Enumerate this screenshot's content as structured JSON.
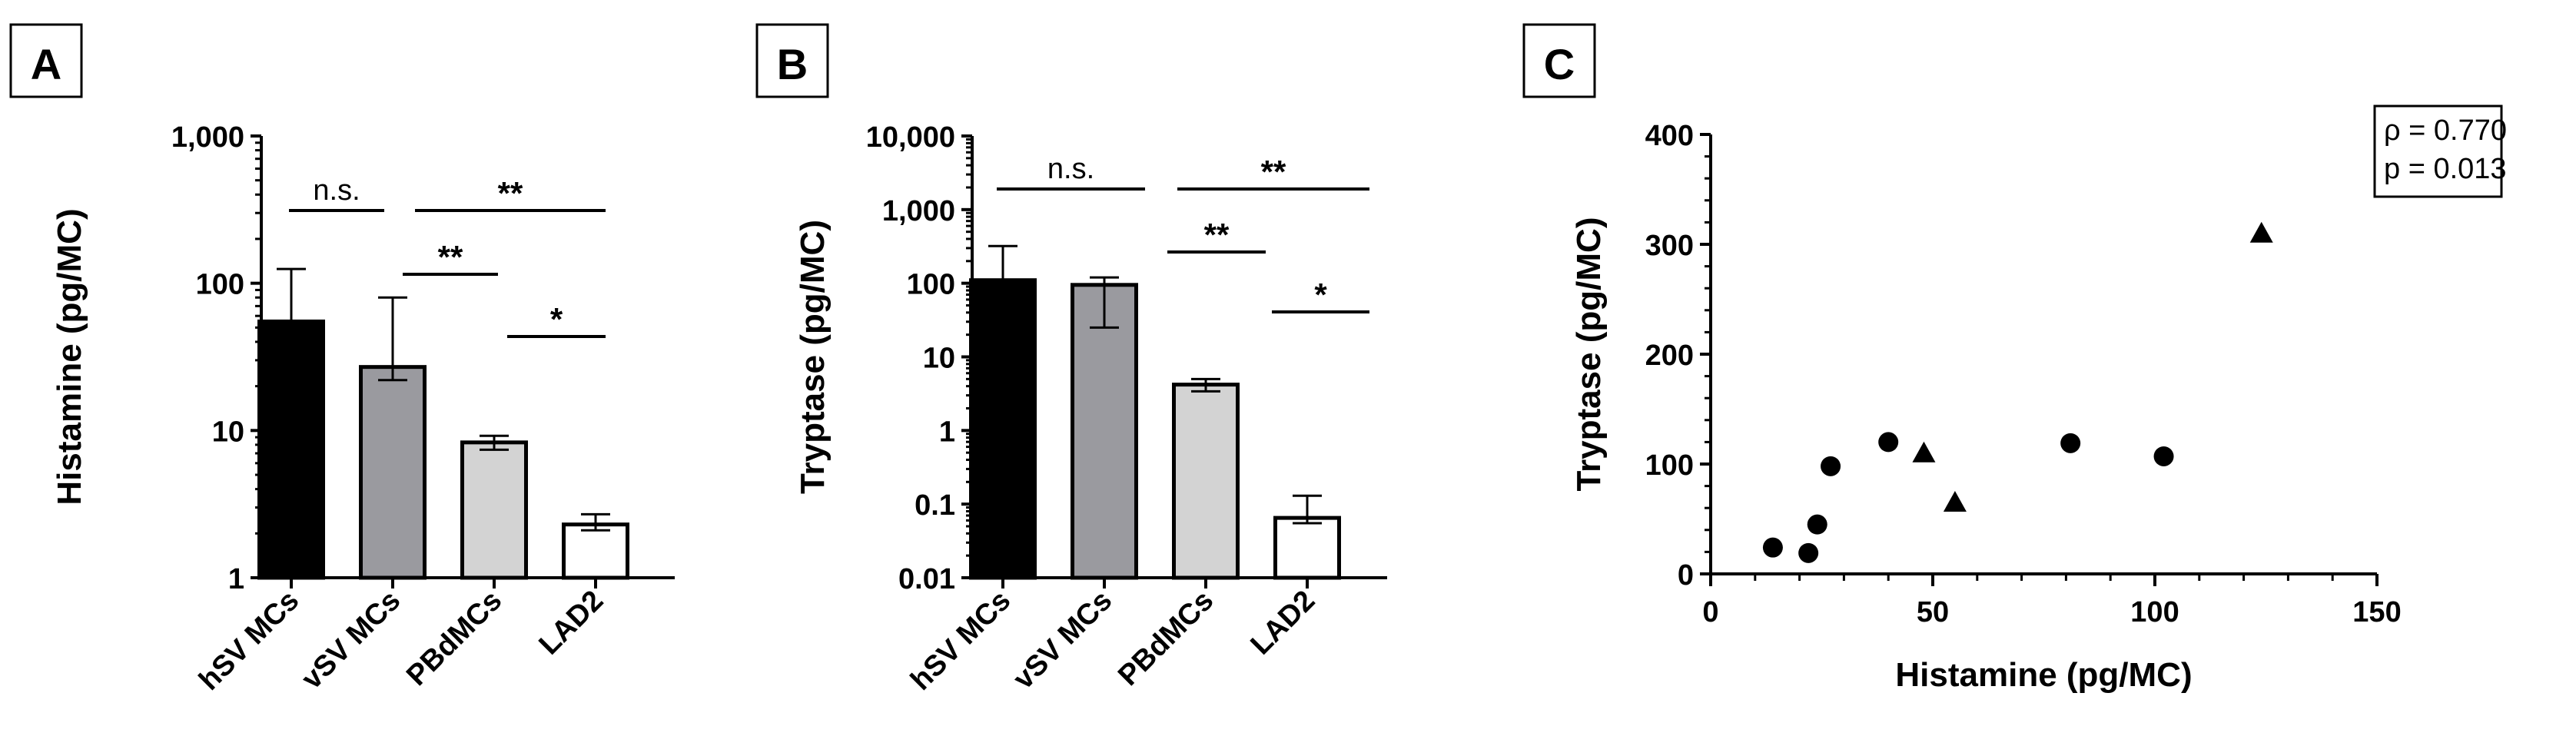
{
  "chart_data": [
    {
      "panel": "A",
      "type": "bar",
      "scale": "log",
      "ylabel": "Histamine (pg/MC)",
      "ylim": [
        1,
        1000
      ],
      "yticks": [
        1,
        10,
        100,
        1000
      ],
      "ytick_labels": [
        "1",
        "10",
        "100",
        "1,000"
      ],
      "categories": [
        "hSV MCs",
        "vSV MCs",
        "PBdMCs",
        "LAD2"
      ],
      "values": [
        55,
        27,
        8.3,
        2.3
      ],
      "error_upper": [
        125,
        80,
        9.2,
        2.7
      ],
      "error_lower": [
        null,
        22,
        7.4,
        2.1
      ],
      "bar_colors": [
        "#000000",
        "#9a9a9f",
        "#d3d3d3",
        "#ffffff"
      ],
      "significance": [
        {
          "from": 0,
          "to": 1,
          "label": "n.s."
        },
        {
          "from": 1,
          "to": 3,
          "label": "**"
        },
        {
          "from": 1,
          "to": 2,
          "label": "**"
        },
        {
          "from": 2,
          "to": 3,
          "label": "*"
        }
      ]
    },
    {
      "panel": "B",
      "type": "bar",
      "scale": "log",
      "ylabel": "Tryptase (pg/MC)",
      "ylim": [
        0.01,
        10000
      ],
      "yticks": [
        0.01,
        0.1,
        1,
        10,
        100,
        1000,
        10000
      ],
      "ytick_labels": [
        "0.01",
        "0.1",
        "1",
        "10",
        "100",
        "1,000",
        "10,000"
      ],
      "categories": [
        "hSV MCs",
        "vSV MCs",
        "PBdMCs",
        "LAD2"
      ],
      "values": [
        110,
        95,
        4.2,
        0.065
      ],
      "error_upper": [
        320,
        120,
        5.0,
        0.13
      ],
      "error_lower": [
        null,
        25,
        3.4,
        0.055
      ],
      "bar_colors": [
        "#000000",
        "#9a9a9f",
        "#d3d3d3",
        "#ffffff"
      ],
      "significance": [
        {
          "from": 0,
          "to": 1,
          "label": "n.s."
        },
        {
          "from": 1,
          "to": 3,
          "label": "**"
        },
        {
          "from": 1,
          "to": 2,
          "label": "**"
        },
        {
          "from": 2,
          "to": 3,
          "label": "*"
        }
      ]
    },
    {
      "panel": "C",
      "type": "scatter",
      "xlabel": "Histamine (pg/MC)",
      "ylabel": "Tryptase (pg/MC)",
      "xlim": [
        0,
        150
      ],
      "ylim": [
        0,
        400
      ],
      "xticks": [
        0,
        50,
        100,
        150
      ],
      "yticks": [
        0,
        100,
        200,
        300,
        400
      ],
      "series": [
        {
          "name": "circles",
          "marker": "circle",
          "points": [
            [
              14,
              24
            ],
            [
              22,
              19
            ],
            [
              24,
              45
            ],
            [
              27,
              98
            ],
            [
              40,
              120
            ],
            [
              81,
              119
            ],
            [
              102,
              107
            ]
          ]
        },
        {
          "name": "triangles",
          "marker": "triangle",
          "points": [
            [
              48,
              110
            ],
            [
              55,
              65
            ],
            [
              124,
              310
            ]
          ]
        }
      ],
      "annotation": [
        "ρ = 0.770",
        "p = 0.013"
      ]
    }
  ],
  "panel_labels": [
    "A",
    "B",
    "C"
  ]
}
